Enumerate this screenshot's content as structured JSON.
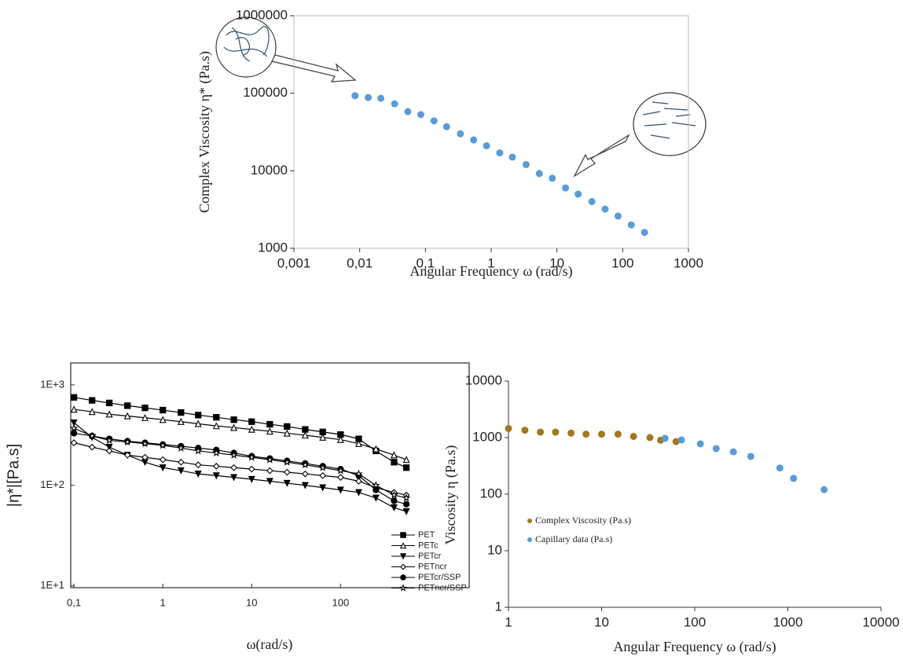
{
  "chart_data": [
    {
      "type": "scatter",
      "x_label": "Angular Frequency ω (rad/s)",
      "y_label": "Complex Viscosity η*   (Pa.s)",
      "x": [
        0.0085,
        0.0135,
        0.021,
        0.034,
        0.054,
        0.085,
        0.135,
        0.21,
        0.34,
        0.54,
        0.85,
        1.35,
        2.1,
        3.4,
        5.4,
        8.5,
        13.5,
        21,
        34,
        54,
        85,
        135,
        215
      ],
      "values": [
        93000,
        88000,
        86000,
        73000,
        58000,
        53000,
        44000,
        37000,
        30000,
        25000,
        21000,
        17000,
        15000,
        12000,
        9200,
        8000,
        6000,
        5000,
        4000,
        3200,
        2600,
        2000,
        1600
      ],
      "color": "#5b9bd5",
      "xlim": [
        0.001,
        1000
      ],
      "ylim": [
        1000,
        1000000
      ],
      "xticks": [
        {
          "value": 0.001,
          "label": "0,001"
        },
        {
          "value": 0.01,
          "label": "0,01"
        },
        {
          "value": 0.1,
          "label": "0,1"
        },
        1,
        10,
        100,
        1000
      ],
      "yticks": [
        1000,
        10000,
        100000,
        1000000
      ],
      "log_x": true,
      "log_y": true
    },
    {
      "type": "line",
      "x_label": "ω(rad/s)",
      "y_label": "|η*|[Pa.s]",
      "x": [
        0.1,
        0.16,
        0.25,
        0.4,
        0.63,
        1,
        1.6,
        2.5,
        4,
        6.3,
        10,
        16,
        25,
        40,
        63,
        100,
        160,
        250,
        400,
        550
      ],
      "series": [
        {
          "name": "PET",
          "color": "#000000",
          "marker": "square",
          "values": [
            750,
            700,
            660,
            620,
            590,
            560,
            530,
            500,
            475,
            450,
            430,
            405,
            385,
            360,
            340,
            320,
            290,
            220,
            170,
            150
          ]
        },
        {
          "name": "PETc",
          "color": "#000000",
          "marker": "triangle-open",
          "values": [
            570,
            540,
            510,
            490,
            470,
            450,
            430,
            410,
            390,
            375,
            360,
            345,
            330,
            315,
            300,
            285,
            260,
            230,
            200,
            180
          ]
        },
        {
          "name": "PETcr",
          "color": "#000000",
          "marker": "triangle-down",
          "values": [
            420,
            300,
            240,
            200,
            170,
            150,
            140,
            130,
            125,
            120,
            115,
            110,
            105,
            100,
            95,
            90,
            85,
            75,
            60,
            55
          ]
        },
        {
          "name": "PETncr",
          "color": "#000000",
          "marker": "diamond-open",
          "values": [
            265,
            240,
            220,
            200,
            190,
            180,
            170,
            160,
            155,
            150,
            145,
            140,
            135,
            130,
            125,
            120,
            110,
            95,
            85,
            80
          ]
        },
        {
          "name": "PETcr/SSP",
          "color": "#000000",
          "marker": "circle",
          "values": [
            330,
            310,
            290,
            275,
            265,
            255,
            245,
            235,
            225,
            210,
            195,
            185,
            175,
            165,
            155,
            145,
            125,
            90,
            70,
            65
          ]
        },
        {
          "name": "PETncr/SSP",
          "color": "#000000",
          "marker": "star-open",
          "values": [
            370,
            310,
            280,
            270,
            260,
            250,
            235,
            220,
            210,
            200,
            190,
            180,
            170,
            160,
            150,
            140,
            130,
            100,
            80,
            75
          ]
        }
      ],
      "xlim": [
        0.092,
        2800
      ],
      "ylim": [
        9.6,
        1650
      ],
      "xticks": [
        {
          "value": 0.1,
          "label": "0,1"
        },
        1,
        10,
        100
      ],
      "yticks": [
        {
          "value": 10,
          "label": "1E+1"
        },
        {
          "value": 100,
          "label": "1E+2"
        },
        {
          "value": 1000,
          "label": "1E+3"
        }
      ],
      "log_x": true,
      "log_y": true,
      "legend": "lower right"
    },
    {
      "type": "scatter",
      "x_label": "Angular Frequency ω (rad/s)",
      "y_label": "Viscosity η   (Pa.s)",
      "series": [
        {
          "name": "Complex Viscosity (Pa.s)",
          "color": "#a07820",
          "x": [
            1,
            1.5,
            2.2,
            3.2,
            4.7,
            6.8,
            10,
            15,
            22,
            33,
            43,
            63
          ],
          "values": [
            1450,
            1350,
            1250,
            1250,
            1200,
            1150,
            1150,
            1150,
            1050,
            1000,
            900,
            850
          ]
        },
        {
          "name": "Capillary data (Pa.s)",
          "color": "#5b9bd5",
          "x": [
            48,
            72,
            115,
            170,
            260,
            400,
            820,
            1150,
            2450
          ],
          "values": [
            970,
            910,
            775,
            640,
            560,
            465,
            290,
            190,
            120
          ]
        }
      ],
      "xlim": [
        1,
        10000
      ],
      "ylim": [
        1,
        10000
      ],
      "xticks": [
        1,
        10,
        100,
        1000,
        10000
      ],
      "yticks": [
        1,
        10,
        100,
        1000,
        10000
      ],
      "log_x": true,
      "log_y": true,
      "legend": "center left"
    }
  ]
}
